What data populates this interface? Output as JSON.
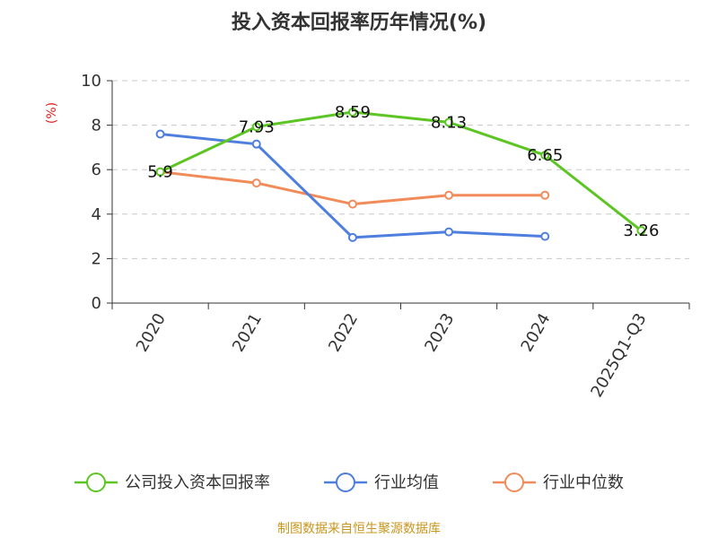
{
  "chart_data": {
    "type": "line",
    "title": "投入资本回报率历年情况(%)",
    "ylabel": "(%)",
    "ylim": [
      0,
      10
    ],
    "yticks": [
      "0",
      "2",
      "4",
      "6",
      "8",
      "10"
    ],
    "categories": [
      "2020",
      "2021",
      "2022",
      "2023",
      "2024",
      "2025Q1-Q3"
    ],
    "grid": true,
    "legend_position": "bottom",
    "series": [
      {
        "name": "公司投入资本回报率",
        "color": "#5cc524",
        "values": [
          5.9,
          7.93,
          8.59,
          8.13,
          6.65,
          3.26
        ],
        "labels": [
          "5.9",
          "7.93",
          "8.59",
          "8.13",
          "6.65",
          "3.26"
        ]
      },
      {
        "name": "行业均值",
        "color": "#4f7fde",
        "values": [
          7.6,
          7.15,
          2.95,
          3.2,
          3.0,
          null
        ]
      },
      {
        "name": "行业中位数",
        "color": "#f28b5a",
        "values": [
          5.9,
          5.4,
          4.45,
          4.85,
          4.85,
          null
        ]
      }
    ]
  },
  "source": "制图数据来自恒生聚源数据库"
}
